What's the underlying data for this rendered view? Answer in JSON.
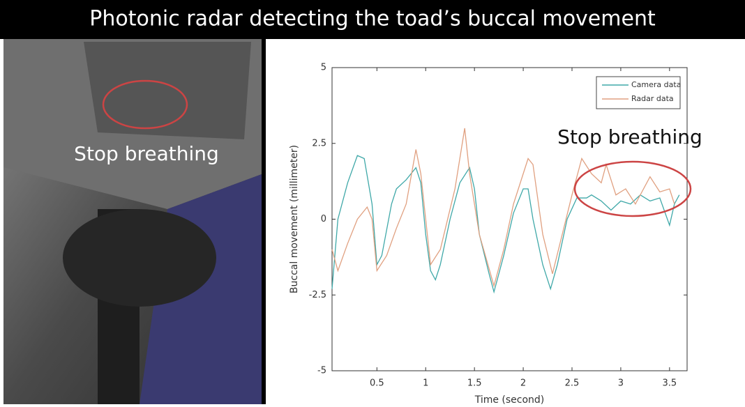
{
  "header": {
    "title": "Photonic radar detecting the toad’s buccal movement"
  },
  "photo": {
    "caption": "Stop breathing"
  },
  "chart_data": {
    "type": "line",
    "xlabel": "Time (second)",
    "ylabel": "Buccal movement (millimeter)",
    "annotation": "Stop breathing",
    "xlim": [
      0.04,
      3.68
    ],
    "ylim": [
      -5,
      5
    ],
    "xticks": [
      0.5,
      1,
      1.5,
      2,
      2.5,
      3,
      3.5
    ],
    "yticks": [
      -5,
      -2.5,
      0,
      2.5,
      5
    ],
    "legend": "upper right",
    "series": [
      {
        "name": "Camera data",
        "color": "#3fa8a8",
        "x": [
          0.04,
          0.1,
          0.2,
          0.3,
          0.37,
          0.45,
          0.5,
          0.55,
          0.65,
          0.7,
          0.8,
          0.9,
          0.95,
          1.0,
          1.05,
          1.1,
          1.15,
          1.25,
          1.35,
          1.45,
          1.5,
          1.55,
          1.65,
          1.7,
          1.8,
          1.9,
          2.0,
          2.05,
          2.1,
          2.2,
          2.28,
          2.35,
          2.45,
          2.55,
          2.65,
          2.7,
          2.8,
          2.9,
          3.0,
          3.1,
          3.2,
          3.3,
          3.4,
          3.5,
          3.55,
          3.6
        ],
        "values": [
          -2.3,
          0,
          1.2,
          2.1,
          2.0,
          0.5,
          -1.5,
          -1.2,
          0.5,
          1.0,
          1.3,
          1.7,
          1.2,
          -0.5,
          -1.7,
          -2.0,
          -1.5,
          0,
          1.2,
          1.7,
          1.0,
          -0.5,
          -1.8,
          -2.4,
          -1.2,
          0.2,
          1.0,
          1.0,
          0,
          -1.5,
          -2.3,
          -1.5,
          0,
          0.7,
          0.7,
          0.8,
          0.6,
          0.3,
          0.6,
          0.5,
          0.8,
          0.6,
          0.7,
          -0.2,
          0.5,
          0.8
        ]
      },
      {
        "name": "Radar data",
        "color": "#e0a080",
        "x": [
          0.04,
          0.1,
          0.2,
          0.3,
          0.4,
          0.45,
          0.5,
          0.6,
          0.7,
          0.8,
          0.9,
          0.95,
          1.05,
          1.15,
          1.3,
          1.4,
          1.45,
          1.55,
          1.7,
          1.8,
          1.9,
          2.0,
          2.05,
          2.1,
          2.2,
          2.3,
          2.4,
          2.5,
          2.6,
          2.7,
          2.8,
          2.85,
          2.95,
          3.05,
          3.15,
          3.3,
          3.4,
          3.5,
          3.55
        ],
        "values": [
          -1.0,
          -1.7,
          -0.8,
          0,
          0.4,
          0,
          -1.7,
          -1.2,
          -0.3,
          0.5,
          2.3,
          1.5,
          -1.5,
          -1.0,
          1.0,
          3.0,
          1.5,
          -0.5,
          -2.2,
          -1.0,
          0.5,
          1.5,
          2.0,
          1.8,
          -0.5,
          -1.8,
          -0.5,
          0.8,
          2.0,
          1.5,
          1.2,
          1.8,
          0.8,
          1.0,
          0.5,
          1.4,
          0.9,
          1.0,
          0.5
        ]
      }
    ]
  }
}
